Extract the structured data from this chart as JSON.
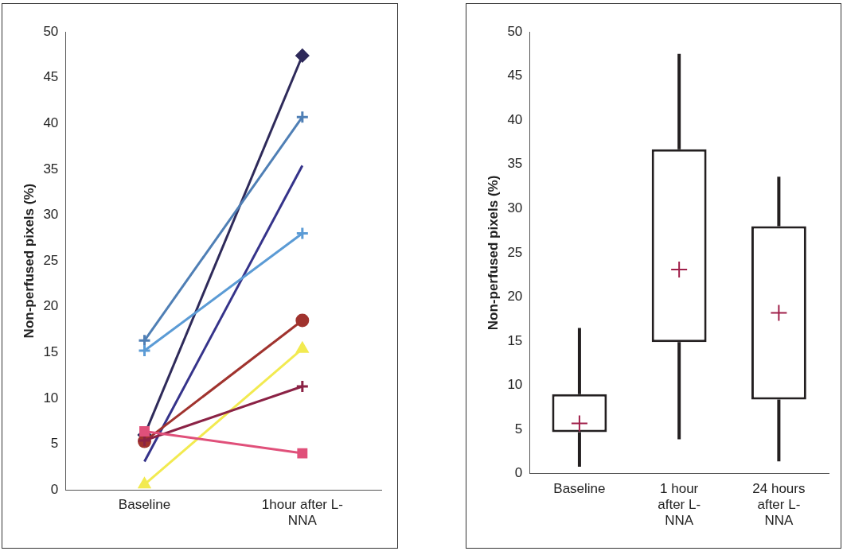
{
  "chart_data": [
    {
      "type": "line",
      "ylabel": "Non-perfused pixels (%)",
      "categories": [
        "Baseline",
        "1hour after L-NNA"
      ],
      "ylim": [
        0,
        50
      ],
      "yticks": [
        0,
        5,
        10,
        15,
        20,
        25,
        30,
        35,
        40,
        45,
        50
      ],
      "grid": false,
      "legend": false,
      "series": [
        {
          "color": "#2e2a5a",
          "marker": "diamond",
          "values": [
            6.0,
            47.4
          ]
        },
        {
          "color": "#4f7fb5",
          "marker": "cross",
          "values": [
            16.3,
            40.7
          ]
        },
        {
          "color": "#35338a",
          "marker": "none",
          "values": [
            3.1,
            35.4
          ]
        },
        {
          "color": "#5b9bd5",
          "marker": "cross",
          "values": [
            15.2,
            28.0
          ]
        },
        {
          "color": "#a0332e",
          "marker": "circle",
          "values": [
            5.3,
            18.5
          ]
        },
        {
          "color": "#f2ea50",
          "marker": "triangle",
          "values": [
            0.6,
            15.4
          ]
        },
        {
          "color": "#8b2245",
          "marker": "cross",
          "values": [
            5.4,
            11.3
          ]
        },
        {
          "color": "#e0507a",
          "marker": "square",
          "values": [
            6.4,
            4.0
          ]
        }
      ]
    },
    {
      "type": "box",
      "ylabel": "Non-perfused pixels (%)",
      "categories": [
        "Baseline",
        "1 hour after L-NNA",
        "24 hours after L-NNA"
      ],
      "ylim": [
        0,
        50
      ],
      "yticks": [
        0,
        5,
        10,
        15,
        20,
        25,
        30,
        35,
        40,
        45,
        50
      ],
      "grid": false,
      "legend": false,
      "series": [
        {
          "color": "#231f20",
          "boxes": [
            {
              "low": 0.8,
              "q1": 4.7,
              "q3": 9.0,
              "high": 16.5,
              "mean": 5.7
            },
            {
              "low": 3.9,
              "q1": 14.9,
              "q3": 36.7,
              "high": 47.5,
              "mean": 23.1
            },
            {
              "low": 1.4,
              "q1": 8.4,
              "q3": 28.0,
              "high": 33.6,
              "mean": 18.2
            }
          ]
        }
      ]
    }
  ]
}
